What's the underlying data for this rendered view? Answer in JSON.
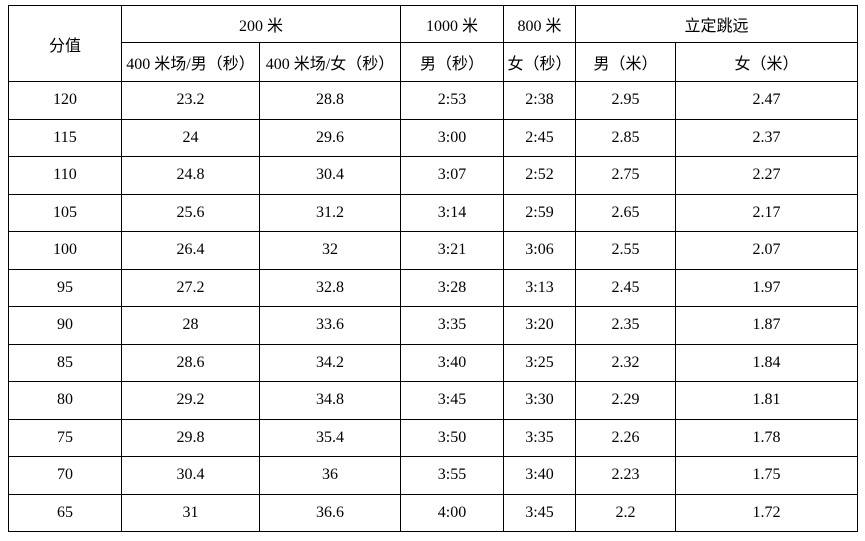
{
  "table": {
    "header": {
      "score_label": "分值",
      "groups": [
        {
          "label": "200 米"
        },
        {
          "label": "1000 米"
        },
        {
          "label": "800 米"
        },
        {
          "label": "立定跳远"
        }
      ],
      "sub_headers": [
        "400 米场/男（秒）",
        "400 米场/女（秒）",
        "男（秒）",
        "女（秒）",
        "男（米）",
        "女（米）"
      ]
    },
    "rows": [
      {
        "score": "120",
        "values": [
          "23.2",
          "28.8",
          "2:53",
          "2:38",
          "2.95",
          "2.47"
        ]
      },
      {
        "score": "115",
        "values": [
          "24",
          "29.6",
          "3:00",
          "2:45",
          "2.85",
          "2.37"
        ]
      },
      {
        "score": "110",
        "values": [
          "24.8",
          "30.4",
          "3:07",
          "2:52",
          "2.75",
          "2.27"
        ]
      },
      {
        "score": "105",
        "values": [
          "25.6",
          "31.2",
          "3:14",
          "2:59",
          "2.65",
          "2.17"
        ]
      },
      {
        "score": "100",
        "values": [
          "26.4",
          "32",
          "3:21",
          "3:06",
          "2.55",
          "2.07"
        ]
      },
      {
        "score": "95",
        "values": [
          "27.2",
          "32.8",
          "3:28",
          "3:13",
          "2.45",
          "1.97"
        ]
      },
      {
        "score": "90",
        "values": [
          "28",
          "33.6",
          "3:35",
          "3:20",
          "2.35",
          "1.87"
        ]
      },
      {
        "score": "85",
        "values": [
          "28.6",
          "34.2",
          "3:40",
          "3:25",
          "2.32",
          "1.84"
        ]
      },
      {
        "score": "80",
        "values": [
          "29.2",
          "34.8",
          "3:45",
          "3:30",
          "2.29",
          "1.81"
        ]
      },
      {
        "score": "75",
        "values": [
          "29.8",
          "35.4",
          "3:50",
          "3:35",
          "2.26",
          "1.78"
        ]
      },
      {
        "score": "70",
        "values": [
          "30.4",
          "36",
          "3:55",
          "3:40",
          "2.23",
          "1.75"
        ]
      },
      {
        "score": "65",
        "values": [
          "31",
          "36.6",
          "4:00",
          "3:45",
          "2.2",
          "1.72"
        ]
      }
    ],
    "colors": {
      "border": "#000000",
      "text": "#000000",
      "background": "#ffffff"
    }
  }
}
